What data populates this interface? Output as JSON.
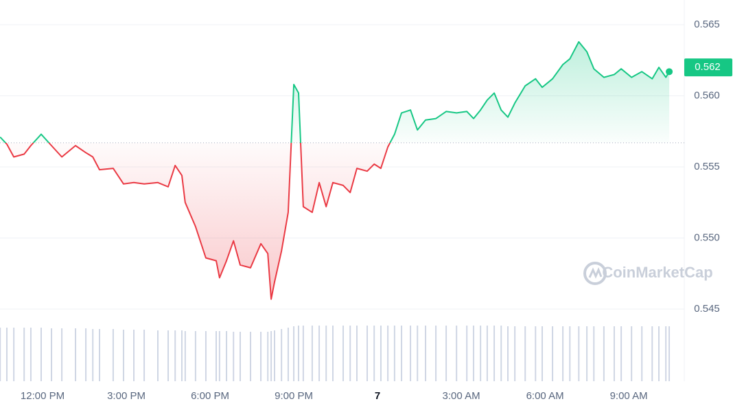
{
  "chart_data": {
    "type": "line",
    "x": [
      10.48,
      10.72,
      10.97,
      11.34,
      11.58,
      11.95,
      12.32,
      12.69,
      13.18,
      13.55,
      13.8,
      14.04,
      14.53,
      14.9,
      15.27,
      15.64,
      16.13,
      16.5,
      16.75,
      16.99,
      17.11,
      17.48,
      17.85,
      18.22,
      18.34,
      18.59,
      18.84,
      19.08,
      19.45,
      19.82,
      20.07,
      20.19,
      20.31,
      20.56,
      20.8,
      21.0,
      21.17,
      21.34,
      21.66,
      21.91,
      22.16,
      22.4,
      22.77,
      23.02,
      23.26,
      23.63,
      23.88,
      24.12,
      24.37,
      24.61,
      24.86,
      25.18,
      25.43,
      25.72,
      26.09,
      26.46,
      26.83,
      27.2,
      27.44,
      27.69,
      27.93,
      28.18,
      28.43,
      28.67,
      28.92,
      29.29,
      29.66,
      29.9,
      30.27,
      30.64,
      30.89,
      31.21,
      31.5,
      31.75,
      32.11,
      32.48,
      32.73,
      33.1,
      33.47,
      33.84,
      34.08,
      34.33,
      34.45
    ],
    "series": [
      {
        "values": [
          0.5571,
          0.5566,
          0.5557,
          0.5559,
          0.5565,
          0.5573,
          0.5565,
          0.5557,
          0.5565,
          0.556,
          0.5557,
          0.5548,
          0.5549,
          0.5538,
          0.5539,
          0.5538,
          0.5539,
          0.5536,
          0.5551,
          0.5544,
          0.5525,
          0.5508,
          0.5486,
          0.5484,
          0.5472,
          0.5484,
          0.5498,
          0.5481,
          0.5479,
          0.5496,
          0.5489,
          0.5457,
          0.5469,
          0.5491,
          0.5518,
          0.5608,
          0.5602,
          0.5522,
          0.5518,
          0.5539,
          0.5522,
          0.5539,
          0.5537,
          0.5532,
          0.5549,
          0.5547,
          0.5552,
          0.5549,
          0.5564,
          0.5573,
          0.5588,
          0.559,
          0.5576,
          0.5583,
          0.5584,
          0.5589,
          0.5588,
          0.5589,
          0.5584,
          0.559,
          0.5597,
          0.5602,
          0.559,
          0.5585,
          0.5595,
          0.5607,
          0.5612,
          0.5606,
          0.5612,
          0.5622,
          0.5626,
          0.5638,
          0.5631,
          0.5619,
          0.5613,
          0.5615,
          0.5619,
          0.5613,
          0.5617,
          0.5612,
          0.562,
          0.5613,
          0.5617
        ],
        "up_color": "#16c784",
        "down_color": "#ea3943"
      }
    ],
    "volume": [
      78,
      78,
      78,
      78,
      78,
      78,
      77,
      77,
      77,
      77,
      76,
      76,
      76,
      75,
      75,
      75,
      74,
      74,
      74,
      74,
      73,
      73,
      73,
      73,
      73,
      73,
      72,
      72,
      72,
      72,
      72,
      73,
      74,
      76,
      78,
      80,
      81,
      81,
      81,
      81,
      81,
      81,
      81,
      81,
      81,
      81,
      81,
      81,
      81,
      81,
      81,
      81,
      81,
      81,
      81,
      81,
      81,
      81,
      81,
      81,
      81,
      81,
      81,
      80,
      80,
      80,
      80,
      80,
      80,
      80,
      80,
      80,
      80,
      80,
      80,
      80,
      80,
      80,
      80,
      80,
      80,
      80,
      80
    ],
    "volume_color": "#cfd6e4",
    "volume_ylim": [
      0,
      100
    ],
    "baseline": 0.5567,
    "current_price": 0.562,
    "watermark": "CoinMarketCap",
    "xlim": [
      10.475,
      34.94
    ],
    "xticks": [
      {
        "value": 12,
        "label": "12:00 PM"
      },
      {
        "value": 15,
        "label": "3:00 PM"
      },
      {
        "value": 18,
        "label": "6:00 PM"
      },
      {
        "value": 21,
        "label": "9:00 PM"
      },
      {
        "value": 24,
        "label": "7"
      },
      {
        "value": 27,
        "label": "3:00 AM"
      },
      {
        "value": 30,
        "label": "6:00 AM"
      },
      {
        "value": 33,
        "label": "9:00 AM"
      }
    ],
    "ylim": [
      0.5435,
      0.5665
    ],
    "yticks": [
      0.545,
      {
        "value": 0.55,
        "label": "0.550"
      },
      0.555,
      {
        "value": 0.56,
        "label": "0.560"
      },
      0.565
    ],
    "grid": true
  }
}
